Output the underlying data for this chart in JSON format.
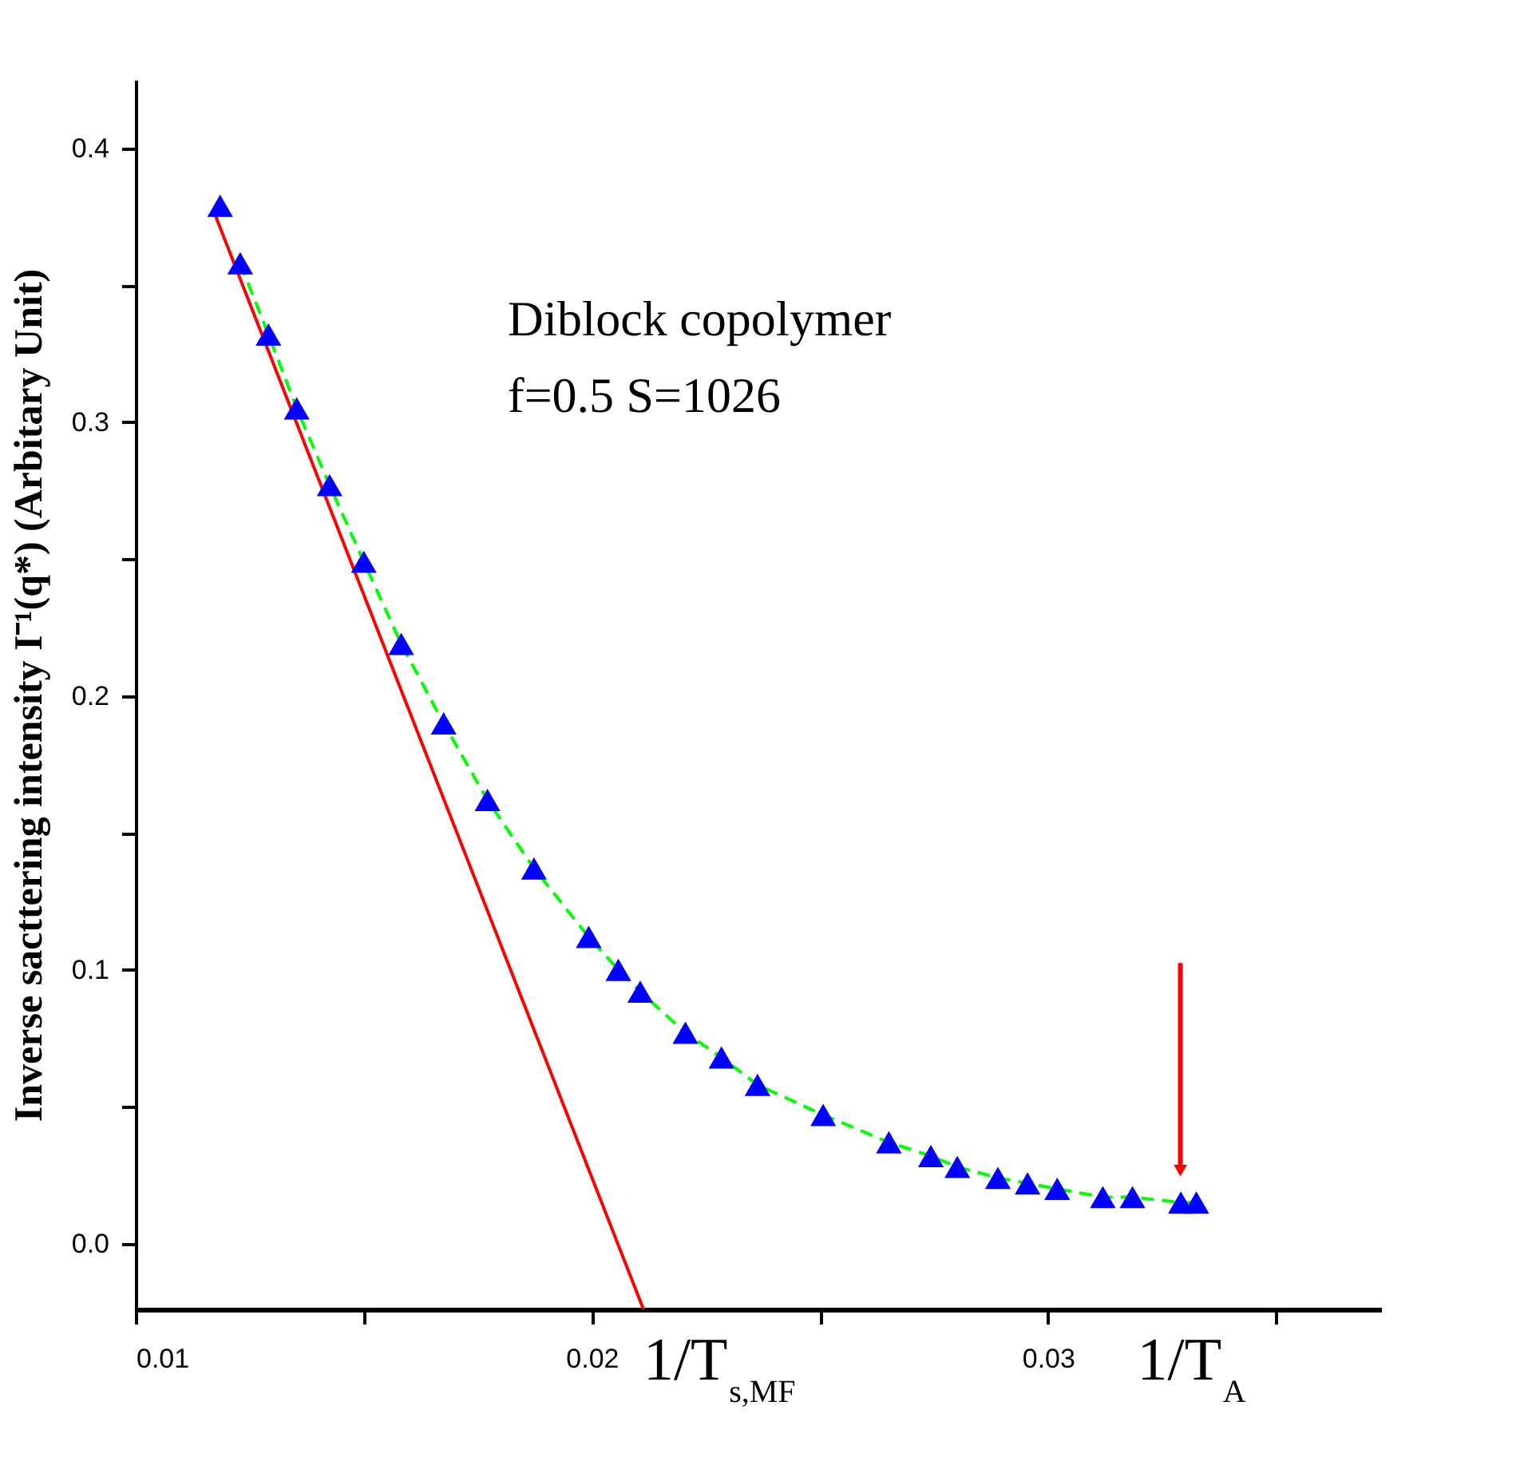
{
  "chart_data": {
    "type": "scatter",
    "ylabel": "Inverse sacttering intensity I⁻¹(q*) (Arbitary Unit)",
    "xlim": [
      0.01,
      0.0373
    ],
    "ylim": [
      -0.024,
      0.425
    ],
    "xticks": [
      0.01,
      {
        "value": 0.015,
        "label": null
      },
      0.02,
      {
        "value": 0.025,
        "label": null
      },
      0.03,
      {
        "value": 0.035,
        "label": null
      }
    ],
    "yticks": [
      {
        "value": 0,
        "label": "0.0"
      },
      {
        "value": 0.05,
        "label": null
      },
      0.1,
      {
        "value": 0.15,
        "label": null
      },
      0.2,
      {
        "value": 0.25,
        "label": null
      },
      0.3,
      {
        "value": 0.35,
        "label": null
      },
      0.4
    ],
    "grid": false,
    "series": [
      {
        "type": "line",
        "color": "#00ff00",
        "line_style": "dashed",
        "marker": "none",
        "x": [
          0.01229,
          0.01291,
          0.01353,
          0.01425,
          0.015,
          0.01582,
          0.01675,
          0.01771,
          0.01873,
          0.01993,
          0.02058,
          0.02106,
          0.02205,
          0.02284,
          0.02363,
          0.02507,
          0.02651,
          0.02743,
          0.02801,
          0.0289,
          0.02955,
          0.0302,
          0.0312,
          0.03185,
          0.03291,
          0.03325
        ],
        "values": [
          0.358,
          0.332,
          0.305,
          0.277,
          0.249,
          0.219,
          0.19,
          0.162,
          0.137,
          0.112,
          0.1,
          0.092,
          0.077,
          0.068,
          0.058,
          0.047,
          0.037,
          0.032,
          0.028,
          0.024,
          0.022,
          0.02,
          0.017,
          0.017,
          0.015,
          0.015
        ]
      },
      {
        "type": "line",
        "color": "#ff0000",
        "line_style": "solid",
        "marker": "none",
        "x": [
          0.01171,
          0.02113
        ],
        "values": [
          0.377,
          -0.024
        ]
      },
      {
        "color": "#0000ff",
        "marker": "triangle",
        "x": [
          0.01185,
          0.01229,
          0.01291,
          0.01353,
          0.01425,
          0.015,
          0.01582,
          0.01675,
          0.01771,
          0.01873,
          0.01993,
          0.02058,
          0.02106,
          0.02205,
          0.02284,
          0.02363,
          0.02507,
          0.02651,
          0.02743,
          0.02801,
          0.0289,
          0.02955,
          0.0302,
          0.0312,
          0.03185,
          0.03291,
          0.03325
        ],
        "values": [
          0.379,
          0.358,
          0.332,
          0.305,
          0.277,
          0.249,
          0.219,
          0.19,
          0.162,
          0.137,
          0.112,
          0.1,
          0.092,
          0.077,
          0.068,
          0.058,
          0.047,
          0.037,
          0.032,
          0.028,
          0.024,
          0.022,
          0.02,
          0.017,
          0.017,
          0.015,
          0.015
        ]
      }
    ],
    "annotations": [
      "Diblock copolymer",
      "f=0.5 S=1026",
      "1/T$_{s,MF}$",
      {
        "text": "1/T$_{A}$",
        "x": 0.0329,
        "y": 0.015
      }
    ]
  }
}
